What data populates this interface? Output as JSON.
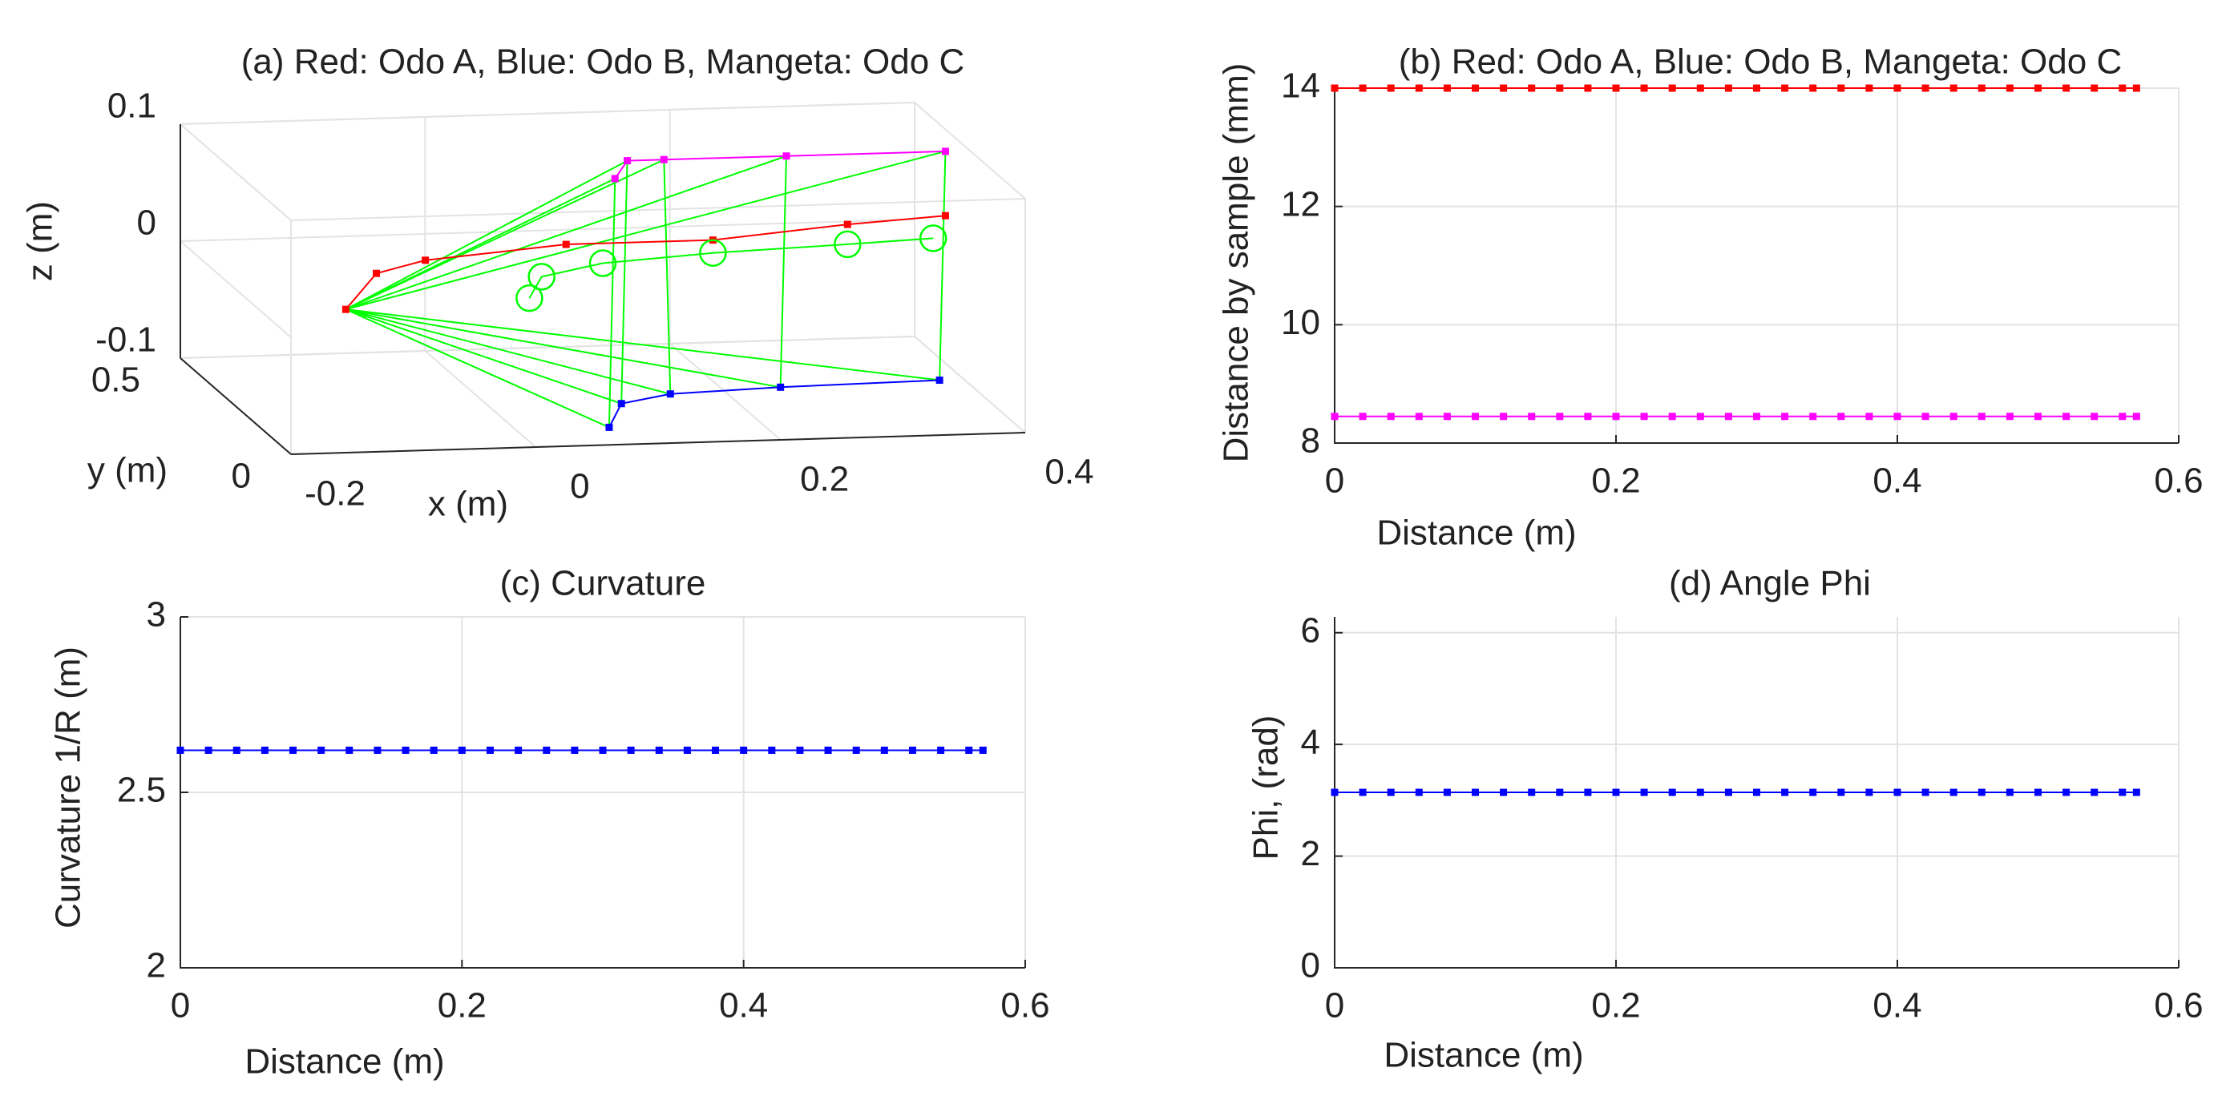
{
  "chart_data": [
    {
      "type": "line3d",
      "title": "(a) Red: Odo A, Blue: Odo B, Mangeta: Odo C",
      "x_label": "x (m)",
      "y_label": "y (m)",
      "z_label": "z (m)",
      "xlim": [
        -0.2,
        0.4
      ],
      "ylim": [
        0,
        0.5
      ],
      "zlim": [
        -0.1,
        0.1
      ],
      "xticks": [
        -0.2,
        0,
        0.2,
        0.4
      ],
      "yticks": [
        0,
        0.5
      ],
      "zticks": [
        -0.1,
        0,
        0.1
      ],
      "grid": true,
      "series": [
        {
          "color": "#ff0000",
          "marker": ".",
          "x": [
            -0.11,
            -0.085,
            -0.045,
            0.07,
            0.19,
            0.3,
            0.38
          ],
          "y": [
            0.25,
            0.25,
            0.25,
            0.25,
            0.25,
            0.25,
            0.25
          ],
          "z": [
            -0.02,
            0.01,
            0.02,
            0.03,
            0.03,
            0.04,
            0.045
          ]
        },
        {
          "color": "#0000ff",
          "marker": ".",
          "x": [
            0.06,
            0.07,
            0.11,
            0.2,
            0.33
          ],
          "y": [
            0,
            0,
            0,
            0,
            0
          ],
          "z": [
            -0.085,
            -0.065,
            -0.058,
            -0.055,
            -0.053
          ]
        },
        {
          "color": "#ff00ff",
          "marker": ".",
          "x": [
            0.11,
            0.12,
            0.15,
            0.25,
            0.38
          ],
          "y": [
            0.25,
            0.25,
            0.25,
            0.25,
            0.25
          ],
          "z": [
            0.085,
            0.1,
            0.1,
            0.1,
            0.1
          ]
        },
        {
          "color": "#00ff00",
          "marker": "o",
          "x": [
            0.04,
            0.05,
            0.1,
            0.19,
            0.3,
            0.37
          ],
          "y": [
            0.25,
            0.25,
            0.25,
            0.25,
            0.25,
            0.25
          ],
          "z": [
            -0.015,
            0.003,
            0.013,
            0.019,
            0.023,
            0.026
          ]
        }
      ]
    },
    {
      "type": "line",
      "title": "(b) Red: Odo A, Blue: Odo B, Mangeta: Odo C",
      "x_label": "Distance (m)",
      "y_label": "Distance by sample (mm)",
      "xlim": [
        0,
        0.6
      ],
      "ylim": [
        8,
        14
      ],
      "xticks": [
        0,
        0.2,
        0.4,
        0.6
      ],
      "yticks": [
        8,
        10,
        12,
        14
      ],
      "grid": true,
      "x": [
        0,
        0.02,
        0.04,
        0.06,
        0.08,
        0.1,
        0.12,
        0.14,
        0.16,
        0.18,
        0.2,
        0.22,
        0.24,
        0.26,
        0.28,
        0.3,
        0.32,
        0.34,
        0.36,
        0.38,
        0.4,
        0.42,
        0.44,
        0.46,
        0.48,
        0.5,
        0.52,
        0.54,
        0.56,
        0.57
      ],
      "series": [
        {
          "color": "#ff0000",
          "values": [
            14,
            14,
            14,
            14,
            14,
            14,
            14,
            14,
            14,
            14,
            14,
            14,
            14,
            14,
            14,
            14,
            14,
            14,
            14,
            14,
            14,
            14,
            14,
            14,
            14,
            14,
            14,
            14,
            14,
            14
          ]
        },
        {
          "color": "#ff00ff",
          "values": [
            8.45,
            8.45,
            8.45,
            8.45,
            8.45,
            8.45,
            8.45,
            8.45,
            8.45,
            8.45,
            8.45,
            8.45,
            8.45,
            8.45,
            8.45,
            8.45,
            8.45,
            8.45,
            8.45,
            8.45,
            8.45,
            8.45,
            8.45,
            8.45,
            8.45,
            8.45,
            8.45,
            8.45,
            8.45,
            8.45
          ]
        }
      ]
    },
    {
      "type": "line",
      "title": "(c) Curvature",
      "x_label": "Distance (m)",
      "y_label": "Curvature 1/R (m)",
      "xlim": [
        0,
        0.6
      ],
      "ylim": [
        2,
        3
      ],
      "xticks": [
        0,
        0.2,
        0.4,
        0.6
      ],
      "yticks": [
        2,
        2.5,
        3
      ],
      "grid": true,
      "x": [
        0,
        0.02,
        0.04,
        0.06,
        0.08,
        0.1,
        0.12,
        0.14,
        0.16,
        0.18,
        0.2,
        0.22,
        0.24,
        0.26,
        0.28,
        0.3,
        0.32,
        0.34,
        0.36,
        0.38,
        0.4,
        0.42,
        0.44,
        0.46,
        0.48,
        0.5,
        0.52,
        0.54,
        0.56,
        0.57
      ],
      "series": [
        {
          "color": "#0000ff",
          "values": [
            2.62,
            2.62,
            2.62,
            2.62,
            2.62,
            2.62,
            2.62,
            2.62,
            2.62,
            2.62,
            2.62,
            2.62,
            2.62,
            2.62,
            2.62,
            2.62,
            2.62,
            2.62,
            2.62,
            2.62,
            2.62,
            2.62,
            2.62,
            2.62,
            2.62,
            2.62,
            2.62,
            2.62,
            2.62,
            2.62
          ]
        }
      ]
    },
    {
      "type": "line",
      "title": "(d) Angle Phi",
      "x_label": "Distance (m)",
      "y_label": "Phi, (rad)",
      "xlim": [
        0,
        0.6
      ],
      "ylim": [
        0,
        6.2832
      ],
      "xticks": [
        0,
        0.2,
        0.4,
        0.6
      ],
      "yticks": [
        0,
        2,
        4,
        6
      ],
      "grid": true,
      "x": [
        0,
        0.02,
        0.04,
        0.06,
        0.08,
        0.1,
        0.12,
        0.14,
        0.16,
        0.18,
        0.2,
        0.22,
        0.24,
        0.26,
        0.28,
        0.3,
        0.32,
        0.34,
        0.36,
        0.38,
        0.4,
        0.42,
        0.44,
        0.46,
        0.48,
        0.5,
        0.52,
        0.54,
        0.56,
        0.57
      ],
      "series": [
        {
          "color": "#0000ff",
          "values": [
            3.1416,
            3.1416,
            3.1416,
            3.1416,
            3.1416,
            3.1416,
            3.1416,
            3.1416,
            3.1416,
            3.1416,
            3.1416,
            3.1416,
            3.1416,
            3.1416,
            3.1416,
            3.1416,
            3.1416,
            3.1416,
            3.1416,
            3.1416,
            3.1416,
            3.1416,
            3.1416,
            3.1416,
            3.1416,
            3.1416,
            3.1416,
            3.1416,
            3.1416,
            3.1416
          ]
        }
      ]
    }
  ]
}
